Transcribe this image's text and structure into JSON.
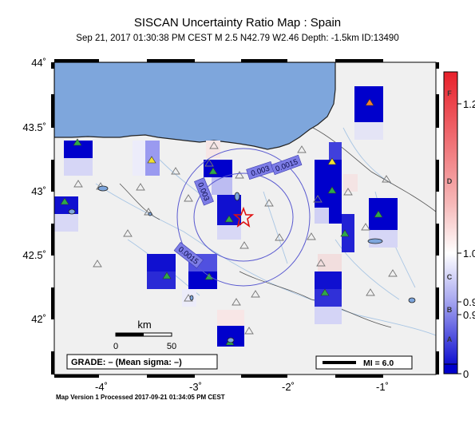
{
  "title": "SISCAN Uncertainty Ratio Map : Spain",
  "subtitle": "Sep 21, 2017 01:30:38 PM CEST   M 2.5   N42.79 W2.46   Depth: -1.5km   ID:13490",
  "footer": "Map Version 1 Processed 2017-09-21 01:34:05 PM CEST",
  "axes": {
    "lat_labels": [
      "44˚",
      "43.5˚",
      "43˚",
      "42.5˚",
      "42˚"
    ],
    "lon_labels": [
      "-4˚",
      "-3˚",
      "-2˚",
      "-1˚"
    ]
  },
  "contours": [
    "0.0015",
    "0.003",
    "0.003",
    "0.0015"
  ],
  "scale_bar": {
    "unit": "km",
    "ticks": [
      "0",
      "50"
    ]
  },
  "grade_box": "GRADE: – (Mean sigma: –)",
  "mi_legend": "MI = 6.0",
  "colorbar": {
    "letters": [
      "F",
      "D",
      "C",
      "B",
      "A"
    ],
    "right_labels": [
      "1.2",
      "1.0",
      "0.9",
      "0.9",
      "0"
    ],
    "colors": {
      "top": "#e8202a",
      "middle": "#ffffff",
      "low": "#3a3ad8",
      "bottom": "#0000cc"
    }
  },
  "colors": {
    "sea": "#7ea6dc",
    "land": "#f0f0f0",
    "epicenter": "#e01010"
  }
}
